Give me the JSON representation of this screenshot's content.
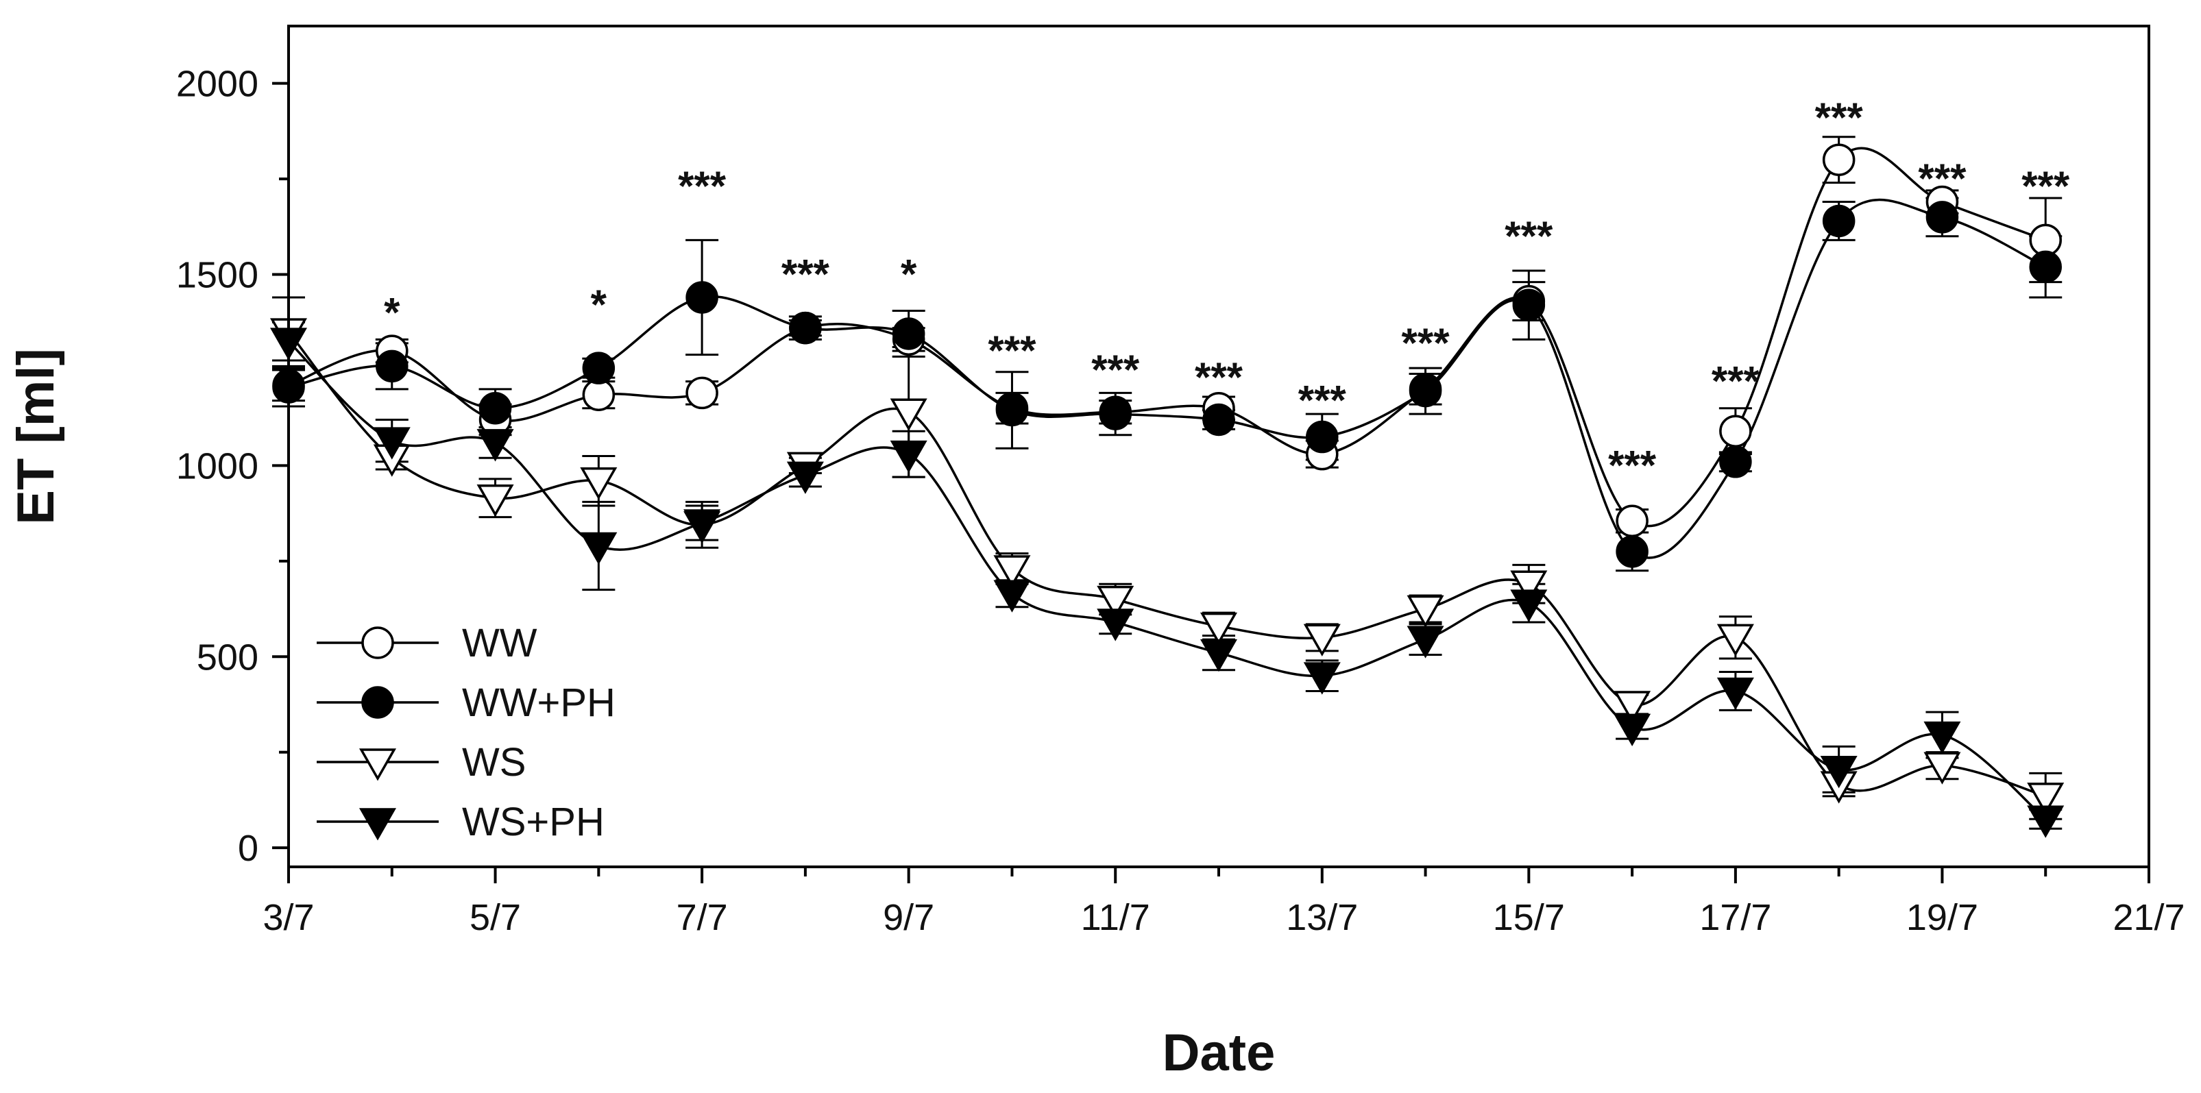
{
  "chart_data": {
    "type": "line",
    "title": "",
    "xlabel": "Date",
    "ylabel": "ET [ml]",
    "xlim": [
      3,
      21
    ],
    "ylim": [
      -50,
      2150
    ],
    "x_ticks": [
      3,
      5,
      7,
      9,
      11,
      13,
      15,
      17,
      19,
      21
    ],
    "x_tick_labels": [
      "3/7",
      "5/7",
      "7/7",
      "9/7",
      "11/7",
      "13/7",
      "15/7",
      "17/7",
      "19/7",
      "21/7"
    ],
    "y_ticks": [
      0,
      500,
      1000,
      1500,
      2000
    ],
    "y_tick_labels": [
      "0",
      "500",
      "1000",
      "1500",
      "2000"
    ],
    "grid": false,
    "legend_position": "bottom-left",
    "x": [
      3,
      4,
      5,
      6,
      7,
      8,
      9,
      10,
      11,
      12,
      13,
      14,
      15,
      16,
      17,
      18,
      19,
      20
    ],
    "series": [
      {
        "name": "WW",
        "marker": "circle-open",
        "values": [
          1210,
          1300,
          1120,
          1185,
          1190,
          1360,
          1330,
          1150,
          1140,
          1150,
          1030,
          1200,
          1430,
          855,
          1090,
          1800,
          1690,
          1590
        ],
        "errors": [
          40,
          30,
          40,
          35,
          30,
          20,
          30,
          40,
          30,
          30,
          35,
          40,
          50,
          30,
          60,
          60,
          30,
          110
        ]
      },
      {
        "name": "WW+PH",
        "marker": "circle-filled",
        "values": [
          1205,
          1260,
          1150,
          1255,
          1440,
          1360,
          1345,
          1145,
          1135,
          1120,
          1075,
          1195,
          1420,
          775,
          1010,
          1640,
          1650,
          1520
        ],
        "errors": [
          50,
          60,
          50,
          25,
          150,
          30,
          60,
          100,
          55,
          25,
          60,
          60,
          90,
          50,
          25,
          50,
          50,
          80
        ]
      },
      {
        "name": "WS",
        "marker": "triangle-open",
        "values": [
          1350,
          1020,
          915,
          960,
          845,
          1000,
          1140,
          730,
          650,
          580,
          550,
          625,
          690,
          375,
          550,
          165,
          215,
          135
        ],
        "errors": [
          90,
          30,
          50,
          65,
          60,
          20,
          170,
          40,
          40,
          35,
          35,
          35,
          50,
          25,
          55,
          30,
          35,
          60
        ]
      },
      {
        "name": "WS+PH",
        "marker": "triangle-filled",
        "values": [
          1325,
          1065,
          1060,
          790,
          850,
          975,
          1030,
          665,
          590,
          510,
          450,
          545,
          640,
          315,
          410,
          205,
          295,
          75
        ],
        "errors": [
          50,
          55,
          40,
          115,
          45,
          30,
          60,
          35,
          30,
          45,
          40,
          40,
          50,
          30,
          50,
          60,
          60,
          25
        ]
      }
    ],
    "annotations": [
      {
        "x": 4,
        "text": "*",
        "y": 1400
      },
      {
        "x": 6,
        "text": "*",
        "y": 1420
      },
      {
        "x": 7,
        "text": "***",
        "y": 1730
      },
      {
        "x": 8,
        "text": "***",
        "y": 1500
      },
      {
        "x": 9,
        "text": "*",
        "y": 1500
      },
      {
        "x": 10,
        "text": "***",
        "y": 1300
      },
      {
        "x": 11,
        "text": "***",
        "y": 1250
      },
      {
        "x": 12,
        "text": "***",
        "y": 1230
      },
      {
        "x": 13,
        "text": "***",
        "y": 1170
      },
      {
        "x": 14,
        "text": "***",
        "y": 1320
      },
      {
        "x": 15,
        "text": "***",
        "y": 1600
      },
      {
        "x": 16,
        "text": "***",
        "y": 1000
      },
      {
        "x": 17,
        "text": "***",
        "y": 1220
      },
      {
        "x": 18,
        "text": "***",
        "y": 1910
      },
      {
        "x": 19,
        "text": "***",
        "y": 1750
      },
      {
        "x": 20,
        "text": "***",
        "y": 1730
      }
    ]
  }
}
